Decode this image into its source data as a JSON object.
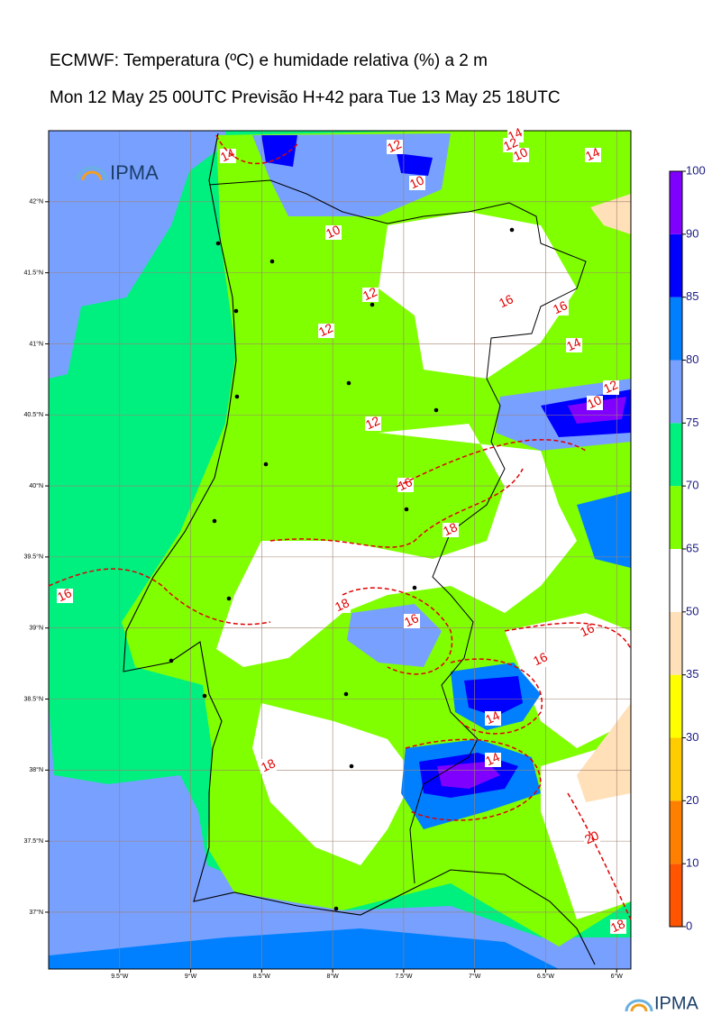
{
  "title": "ECMWF: Temperatura (ºC) e humidade relativa (%) a 2 m",
  "subtitle": "Mon 12 May 25 00UTC Previsão H+42 para Tue 13 May 25 18UTC",
  "logo": "IPMA",
  "xlim": [
    -10,
    -5.9
  ],
  "ylim": [
    36.6,
    42.5
  ],
  "xticks": [
    {
      "value": -9.5,
      "label": "9.5°W"
    },
    {
      "value": -9,
      "label": "9°W"
    },
    {
      "value": -8.5,
      "label": "8.5°W"
    },
    {
      "value": -8,
      "label": "8°W"
    },
    {
      "value": -7.5,
      "label": "7.5°W"
    },
    {
      "value": -7,
      "label": "7°W"
    },
    {
      "value": -6.5,
      "label": "6.5°W"
    },
    {
      "value": -6,
      "label": "6°W"
    }
  ],
  "yticks": [
    {
      "value": 42,
      "label": "42°N"
    },
    {
      "value": 41.5,
      "label": "41.5°N"
    },
    {
      "value": 41,
      "label": "41°N"
    },
    {
      "value": 40.5,
      "label": "40.5°N"
    },
    {
      "value": 40,
      "label": "40°N"
    },
    {
      "value": 39.5,
      "label": "39.5°N"
    },
    {
      "value": 39,
      "label": "39°N"
    },
    {
      "value": 38.5,
      "label": "38.5°N"
    },
    {
      "value": 38,
      "label": "38°N"
    },
    {
      "value": 37.5,
      "label": "37.5°N"
    },
    {
      "value": 37,
      "label": "37°N"
    }
  ],
  "colorbar": {
    "ticks": [
      0,
      10,
      20,
      30,
      35,
      50,
      65,
      70,
      75,
      80,
      85,
      90,
      100
    ],
    "colors": [
      "#ff5500",
      "#ff8000",
      "#ffcc00",
      "#ffff00",
      "#ffe0b8",
      "#ffffff",
      "#80ff00",
      "#00f080",
      "#78a0ff",
      "#0080ff",
      "#0000ff",
      "#8000ff"
    ]
  },
  "contour_labels": [
    14,
    12,
    10,
    14,
    12,
    10,
    14,
    10,
    12,
    16,
    16,
    12,
    14,
    12,
    10,
    12,
    16,
    18,
    16,
    18,
    16,
    16,
    16,
    14,
    14,
    18,
    20,
    18
  ]
}
